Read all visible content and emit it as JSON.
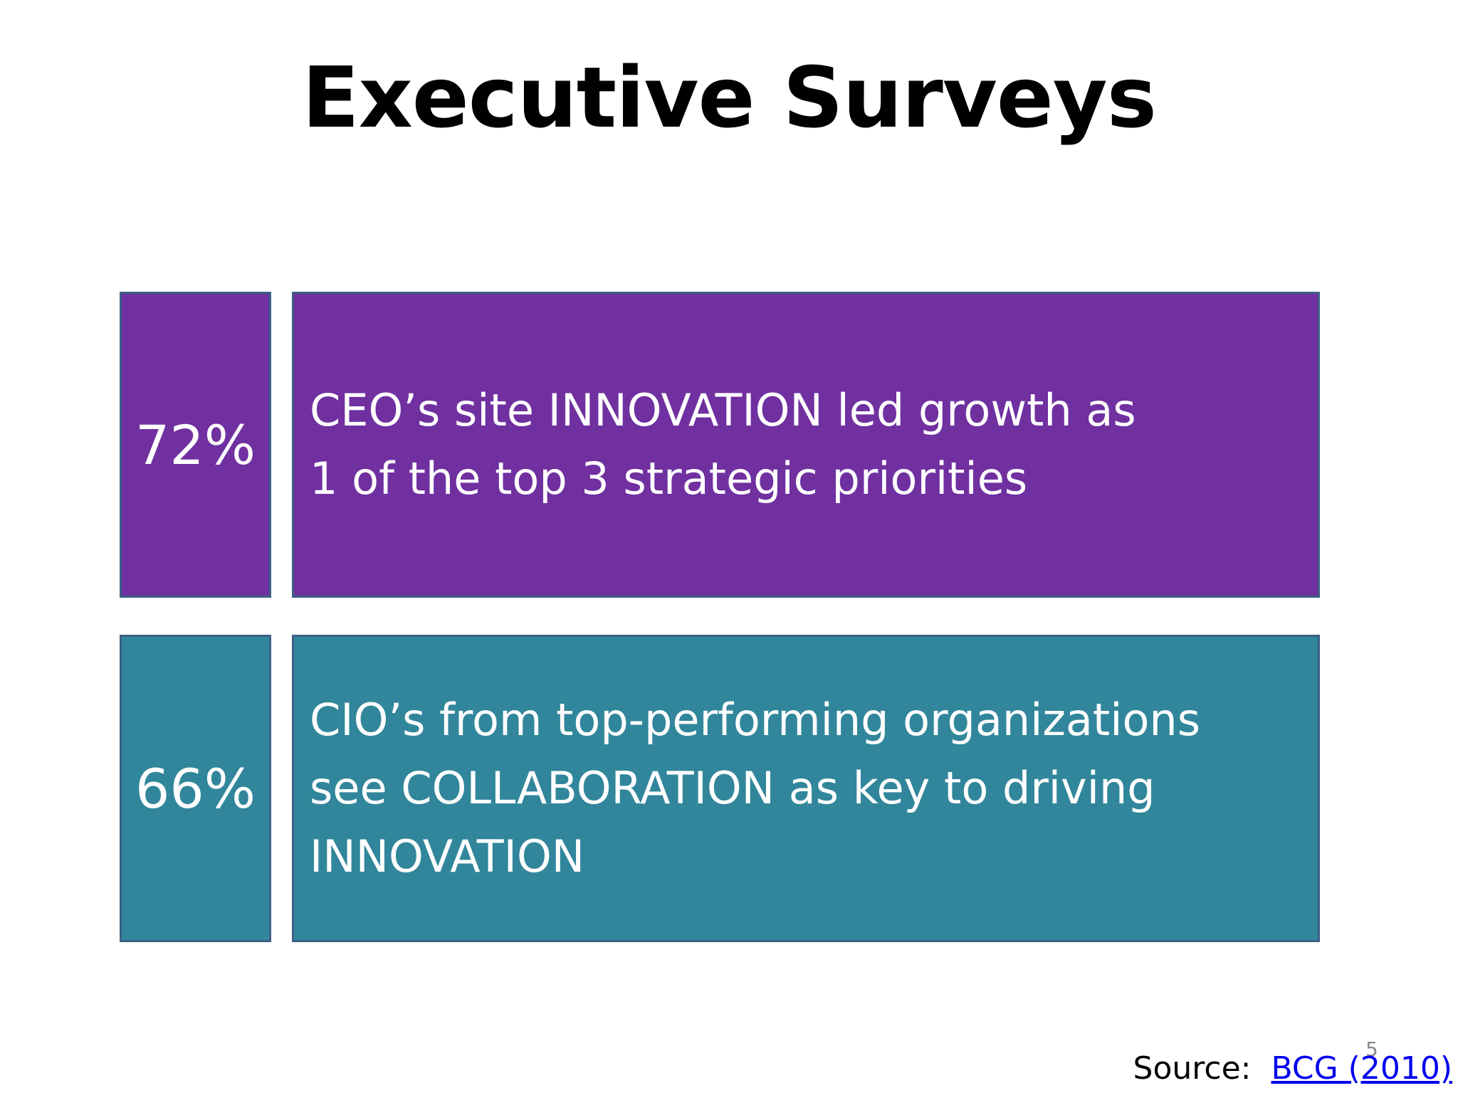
{
  "slide": {
    "title": "Executive Surveys",
    "rows": [
      {
        "stat": "72%",
        "text": "CEO’s site INNOVATION led growth as\n1 of the top 3 strategic priorities",
        "color": "#7030a0"
      },
      {
        "stat": "66%",
        "text": "CIO’s from top-performing organizations\nsee COLLABORATION as key to driving\nINNOVATION",
        "color": "#31869b"
      }
    ],
    "source_label": "Source:",
    "source_link": "BCG (2010)",
    "slide_number": "5",
    "border_color": "#3d5f86"
  }
}
